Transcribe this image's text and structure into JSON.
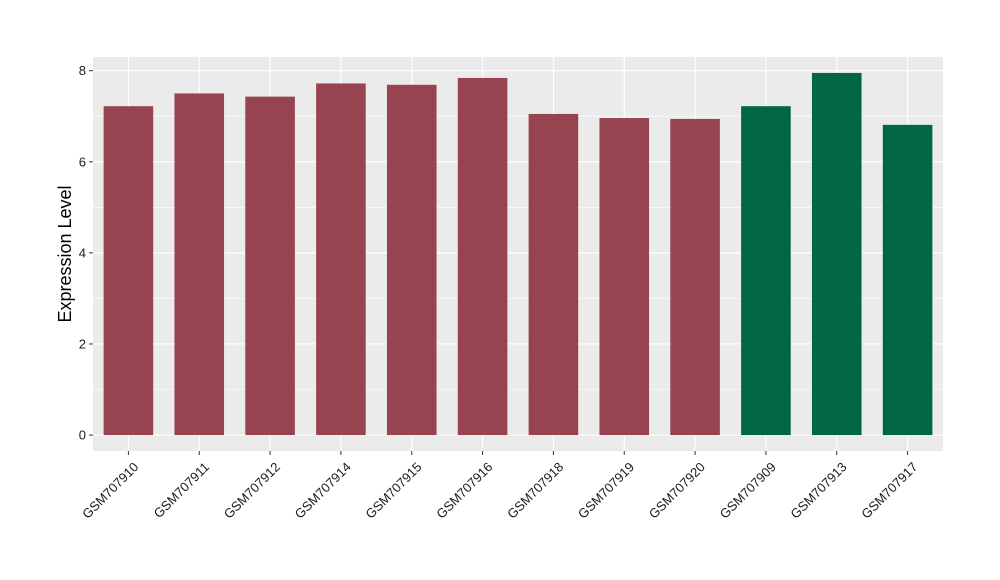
{
  "chart_data": {
    "type": "bar",
    "title": "",
    "xlabel": "",
    "ylabel": "Expression Level",
    "ylim": [
      -0.35,
      8.3
    ],
    "yticks": [
      0,
      2,
      4,
      6,
      8
    ],
    "grid": true,
    "categories": [
      "GSM707910",
      "GSM707911",
      "GSM707912",
      "GSM707914",
      "GSM707915",
      "GSM707916",
      "GSM707918",
      "GSM707919",
      "GSM707920",
      "GSM707909",
      "GSM707913",
      "GSM707917"
    ],
    "values": [
      7.22,
      7.5,
      7.43,
      7.72,
      7.69,
      7.84,
      7.05,
      6.96,
      6.94,
      7.22,
      7.95,
      6.81
    ],
    "bar_colors": [
      "#984450",
      "#984450",
      "#984450",
      "#984450",
      "#984450",
      "#984450",
      "#984450",
      "#984450",
      "#984450",
      "#006644",
      "#006644",
      "#006644"
    ]
  },
  "colors": {
    "panel_background": "#ebebeb",
    "grid": "#ffffff"
  }
}
